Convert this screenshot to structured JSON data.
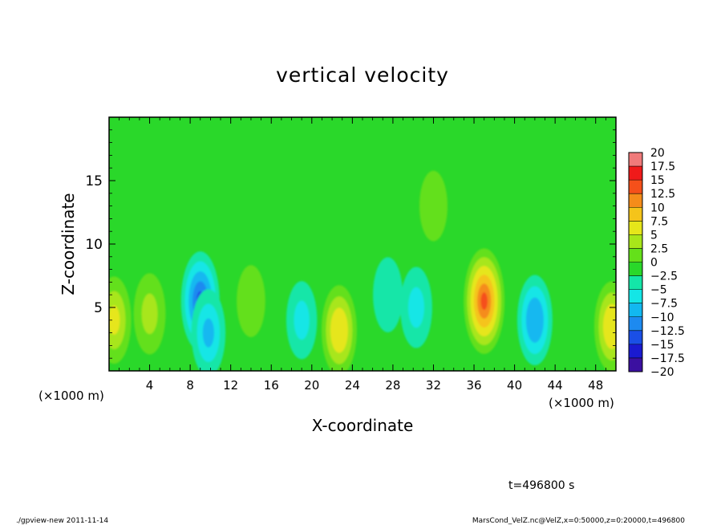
{
  "chart_data": {
    "type": "heatmap",
    "title": "vertical velocity",
    "xlabel": "X-coordinate",
    "ylabel": "Z-coordinate",
    "x_unit_left": "(×1000 m)",
    "x_unit_right": "(×1000 m)",
    "xlim": [
      0,
      50
    ],
    "ylim": [
      0,
      20
    ],
    "x_ticks": [
      "4",
      "8",
      "12",
      "16",
      "20",
      "24",
      "28",
      "32",
      "36",
      "40",
      "44",
      "48"
    ],
    "y_ticks": [
      "5",
      "10",
      "15"
    ],
    "x_tick_values": [
      4,
      8,
      12,
      16,
      20,
      24,
      28,
      32,
      36,
      40,
      44,
      48
    ],
    "y_tick_values": [
      5,
      10,
      15
    ],
    "colorbar": {
      "levels": [
        "20",
        "17.5",
        "15",
        "12.5",
        "10",
        "7.5",
        "5",
        "2.5",
        "0",
        "−2.5",
        "−5",
        "−7.5",
        "−10",
        "−12.5",
        "−15",
        "−17.5",
        "−20"
      ],
      "min": -20,
      "max": 20,
      "colors": [
        "#7d2ab8",
        "#3b10a0",
        "#1a1ad0",
        "#1a4fe6",
        "#1d8af0",
        "#12b8f0",
        "#14e6e6",
        "#14e6a8",
        "#2ad82a",
        "#64e01a",
        "#a8e61a",
        "#e6e61a",
        "#f5c41a",
        "#f58c1a",
        "#f5501a",
        "#f01a1a",
        "#f07a7a"
      ]
    },
    "features": [
      {
        "x": 9.0,
        "z": 5.5,
        "value": -11
      },
      {
        "x": 9.8,
        "z": 3.0,
        "value": -7
      },
      {
        "x": 42.0,
        "z": 4.0,
        "value": -8
      },
      {
        "x": 30.3,
        "z": 5.0,
        "value": -5
      },
      {
        "x": 19.0,
        "z": 4.0,
        "value": -4
      },
      {
        "x": 27.5,
        "z": 6.0,
        "value": -3
      },
      {
        "x": 37.0,
        "z": 5.5,
        "value": 13
      },
      {
        "x": 22.7,
        "z": 3.2,
        "value": 8
      },
      {
        "x": 4.0,
        "z": 4.5,
        "value": 5
      },
      {
        "x": 0.5,
        "z": 4.0,
        "value": 7
      },
      {
        "x": 49.6,
        "z": 3.5,
        "value": 8
      },
      {
        "x": 14.0,
        "z": 5.5,
        "value": 2
      },
      {
        "x": 32.0,
        "z": 13.0,
        "value": 1.5
      }
    ]
  },
  "time_label": "t=496800 s",
  "footer_left": "./gpview-new  2011-11-14",
  "footer_right": "MarsCond_VelZ.nc@VelZ,x=0:50000,z=0:20000,t=496800"
}
